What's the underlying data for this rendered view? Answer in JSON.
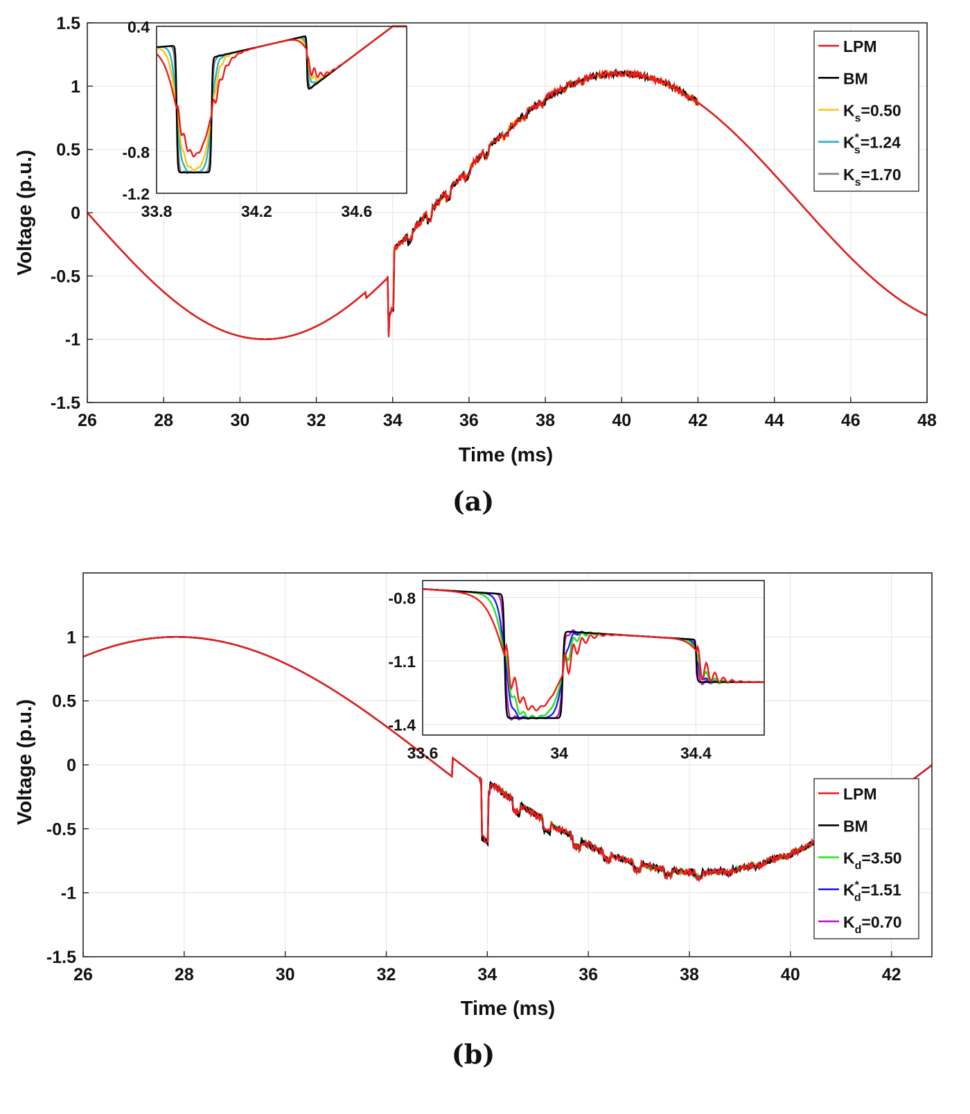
{
  "colors": {
    "LPM": "#ee1c1c",
    "BM": "#000000",
    "Ks_050": "#ffc20e",
    "Ks_124": "#20b7c0",
    "Ks_170": "#7f7f7f",
    "Kd_350": "#22e022",
    "Kd_151": "#1f1fe8",
    "Kd_070": "#b21ccc"
  },
  "panels": [
    {
      "label": "(a)",
      "chart_data": {
        "type": "line",
        "xlabel": "Time (ms)",
        "ylabel": "Voltage (p.u.)",
        "xlim": [
          26,
          48
        ],
        "ylim": [
          -1.5,
          1.5
        ],
        "xticks": [
          26,
          28,
          30,
          32,
          34,
          36,
          38,
          40,
          42,
          44,
          46,
          48
        ],
        "yticks": [
          -1.5,
          -1,
          -0.5,
          0,
          0.5,
          1,
          1.5
        ],
        "xtick_labels": [
          "26",
          "28",
          "30",
          "32",
          "34",
          "36",
          "38",
          "40",
          "42",
          "44",
          "46",
          "48"
        ],
        "ytick_labels": [
          "-1.5",
          "-1",
          "-0.5",
          "0",
          "0.5",
          "1",
          "1.5"
        ],
        "grid": true,
        "legend_position": "top-right",
        "series": [
          {
            "name": "LPM",
            "sym": "LPM",
            "sub": "",
            "star": "",
            "rest": "",
            "color_key": "LPM"
          },
          {
            "name": "BM",
            "sym": "BM",
            "sub": "",
            "star": "",
            "rest": "",
            "color_key": "BM"
          },
          {
            "name": "Ks=0.50",
            "sym": "K",
            "sub": "s",
            "star": "",
            "rest": "=0.50",
            "color_key": "Ks_050"
          },
          {
            "name": "Ks*=1.24",
            "sym": "K",
            "sub": "s",
            "star": "*",
            "rest": "=1.24",
            "color_key": "Ks_124"
          },
          {
            "name": "Ks=1.70",
            "sym": "K",
            "sub": "s",
            "star": "",
            "rest": "=1.70",
            "color_key": "Ks_170"
          }
        ],
        "inset": {
          "xlim": [
            33.8,
            34.8
          ],
          "ylim": [
            -1.2,
            0.4
          ],
          "xticks": [
            33.8,
            34.2,
            34.6
          ],
          "yticks": [
            -1.2,
            -0.8,
            0.4
          ],
          "xtick_labels": [
            "33.8",
            "34.2",
            "34.6"
          ],
          "ytick_labels": [
            "-1.2",
            "-0.8",
            "0.4"
          ],
          "position": "top-left"
        }
      }
    },
    {
      "label": "(b)",
      "chart_data": {
        "type": "line",
        "xlabel": "Time (ms)",
        "ylabel": "Voltage (p.u.)",
        "xlim": [
          26,
          42.8
        ],
        "ylim": [
          -1.5,
          1.5
        ],
        "xticks": [
          26,
          28,
          30,
          32,
          34,
          36,
          38,
          40,
          42
        ],
        "yticks": [
          -1.5,
          -1,
          -0.5,
          0,
          0.5,
          1
        ],
        "xtick_labels": [
          "26",
          "28",
          "30",
          "32",
          "34",
          "36",
          "38",
          "40",
          "42"
        ],
        "ytick_labels": [
          "-1.5",
          "-1",
          "-0.5",
          "0",
          "0.5",
          "1"
        ],
        "grid": true,
        "legend_position": "bottom-right",
        "series": [
          {
            "name": "LPM",
            "sym": "LPM",
            "sub": "",
            "star": "",
            "rest": "",
            "color_key": "LPM"
          },
          {
            "name": "BM",
            "sym": "BM",
            "sub": "",
            "star": "",
            "rest": "",
            "color_key": "BM"
          },
          {
            "name": "Kd=3.50",
            "sym": "K",
            "sub": "d",
            "star": "",
            "rest": "=3.50",
            "color_key": "Kd_350"
          },
          {
            "name": "Kd*=1.51",
            "sym": "K",
            "sub": "d",
            "star": "*",
            "rest": "=1.51",
            "color_key": "Kd_151"
          },
          {
            "name": "Kd=0.70",
            "sym": "K",
            "sub": "d",
            "star": "",
            "rest": "=0.70",
            "color_key": "Kd_070"
          }
        ],
        "inset": {
          "xlim": [
            33.6,
            34.6
          ],
          "ylim": [
            -1.45,
            -0.72
          ],
          "xticks": [
            33.6,
            34.0,
            34.4
          ],
          "yticks": [
            -1.4,
            -1.1,
            -0.8
          ],
          "xtick_labels": [
            "33.6",
            "34",
            "34.4"
          ],
          "ytick_labels": [
            "-1.4",
            "-1.1",
            "-0.8"
          ],
          "position": "top-center"
        }
      }
    }
  ]
}
